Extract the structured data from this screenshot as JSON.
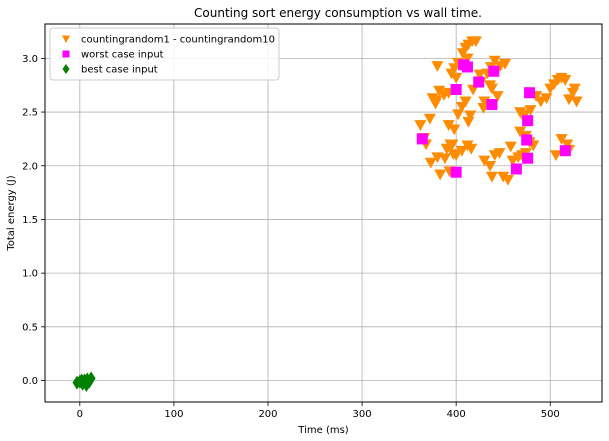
{
  "chart_data": {
    "type": "scatter",
    "title": "Counting sort energy consumption vs wall time.",
    "xlabel": "Time (ms)",
    "ylabel": "Total energy (J)",
    "xlim": [
      -37,
      555
    ],
    "ylim": [
      -0.2,
      3.32
    ],
    "xticks": [
      "0",
      "100",
      "200",
      "300",
      "400",
      "500"
    ],
    "yticks": [
      "0.0",
      "0.5",
      "1.0",
      "1.5",
      "2.0",
      "2.5",
      "3.0"
    ],
    "grid": true,
    "legend_position": "top-left",
    "series": [
      {
        "name": "countingrandom1 - countingrandom10",
        "marker": "triangle-down",
        "color": "#ff8c00",
        "points": [
          [
            366,
            2.26
          ],
          [
            362,
            2.38
          ],
          [
            368,
            2.2
          ],
          [
            373,
            2.03
          ],
          [
            380,
            2.08
          ],
          [
            383,
            1.92
          ],
          [
            390,
            2.16
          ],
          [
            394,
            2.2
          ],
          [
            400,
            2.1
          ],
          [
            406,
            2.14
          ],
          [
            412,
            2.19
          ],
          [
            416,
            2.16
          ],
          [
            388,
            2.07
          ],
          [
            393,
            1.95
          ],
          [
            397,
            2.11
          ],
          [
            372,
            2.44
          ],
          [
            378,
            2.58
          ],
          [
            382,
            2.7
          ],
          [
            387,
            2.66
          ],
          [
            375,
            2.63
          ],
          [
            379,
            2.61
          ],
          [
            392,
            2.38
          ],
          [
            398,
            2.34
          ],
          [
            402,
            2.48
          ],
          [
            406,
            2.55
          ],
          [
            410,
            2.6
          ],
          [
            415,
            2.47
          ],
          [
            413,
            2.41
          ],
          [
            396,
            2.2
          ],
          [
            392,
            2.68
          ],
          [
            395,
            2.86
          ],
          [
            398,
            2.91
          ],
          [
            402,
            2.96
          ],
          [
            407,
            3.05
          ],
          [
            410,
            3.1
          ],
          [
            413,
            3.13
          ],
          [
            417,
            3.16
          ],
          [
            421,
            3.16
          ],
          [
            412,
            3.0
          ],
          [
            425,
            2.85
          ],
          [
            380,
            2.93
          ],
          [
            400,
            2.82
          ],
          [
            418,
            2.71
          ],
          [
            426,
            2.78
          ],
          [
            433,
            2.86
          ],
          [
            437,
            2.92
          ],
          [
            441,
            2.98
          ],
          [
            447,
            2.93
          ],
          [
            452,
            2.95
          ],
          [
            444,
            2.65
          ],
          [
            438,
            2.72
          ],
          [
            430,
            2.6
          ],
          [
            436,
            2.75
          ],
          [
            429,
            2.54
          ],
          [
            430,
            2.05
          ],
          [
            436,
            2.0
          ],
          [
            441,
            2.1
          ],
          [
            446,
            2.12
          ],
          [
            450,
            1.9
          ],
          [
            455,
            1.87
          ],
          [
            438,
            1.9
          ],
          [
            460,
            2.05
          ],
          [
            466,
            2.08
          ],
          [
            470,
            2.1
          ],
          [
            474,
            2.12
          ],
          [
            478,
            2.22
          ],
          [
            482,
            2.19
          ],
          [
            458,
            2.18
          ],
          [
            468,
            2.32
          ],
          [
            474,
            2.28
          ],
          [
            468,
            2.5
          ],
          [
            473,
            2.48
          ],
          [
            479,
            2.52
          ],
          [
            485,
            2.65
          ],
          [
            490,
            2.6
          ],
          [
            496,
            2.63
          ],
          [
            500,
            2.72
          ],
          [
            504,
            2.76
          ],
          [
            508,
            2.8
          ],
          [
            512,
            2.82
          ],
          [
            516,
            2.8
          ],
          [
            520,
            2.62
          ],
          [
            524,
            2.68
          ],
          [
            528,
            2.6
          ],
          [
            526,
            2.72
          ],
          [
            518,
            2.2
          ],
          [
            512,
            2.25
          ],
          [
            506,
            2.1
          ],
          [
            520,
            2.15
          ],
          [
            474,
            2.42
          ]
        ]
      },
      {
        "name": "worst case input",
        "marker": "square",
        "color": "#ff00ff",
        "points": [
          [
            364,
            2.25
          ],
          [
            400,
            2.71
          ],
          [
            408,
            2.94
          ],
          [
            412,
            2.92
          ],
          [
            424,
            2.78
          ],
          [
            440,
            2.88
          ],
          [
            438,
            2.57
          ],
          [
            478,
            2.68
          ],
          [
            476,
            2.42
          ],
          [
            475,
            2.24
          ],
          [
            476,
            2.07
          ],
          [
            464,
            1.97
          ],
          [
            400,
            1.94
          ],
          [
            516,
            2.14
          ]
        ]
      },
      {
        "name": "best case input",
        "marker": "diamond",
        "color": "#008000",
        "points": [
          [
            -3,
            -0.02
          ],
          [
            0,
            -0.01
          ],
          [
            3,
            -0.03
          ],
          [
            5,
            0.0
          ],
          [
            7,
            -0.04
          ],
          [
            8,
            0.01
          ],
          [
            10,
            -0.01
          ],
          [
            12,
            0.02
          ],
          [
            2,
            0.0
          ],
          [
            6,
            -0.02
          ]
        ]
      }
    ]
  }
}
